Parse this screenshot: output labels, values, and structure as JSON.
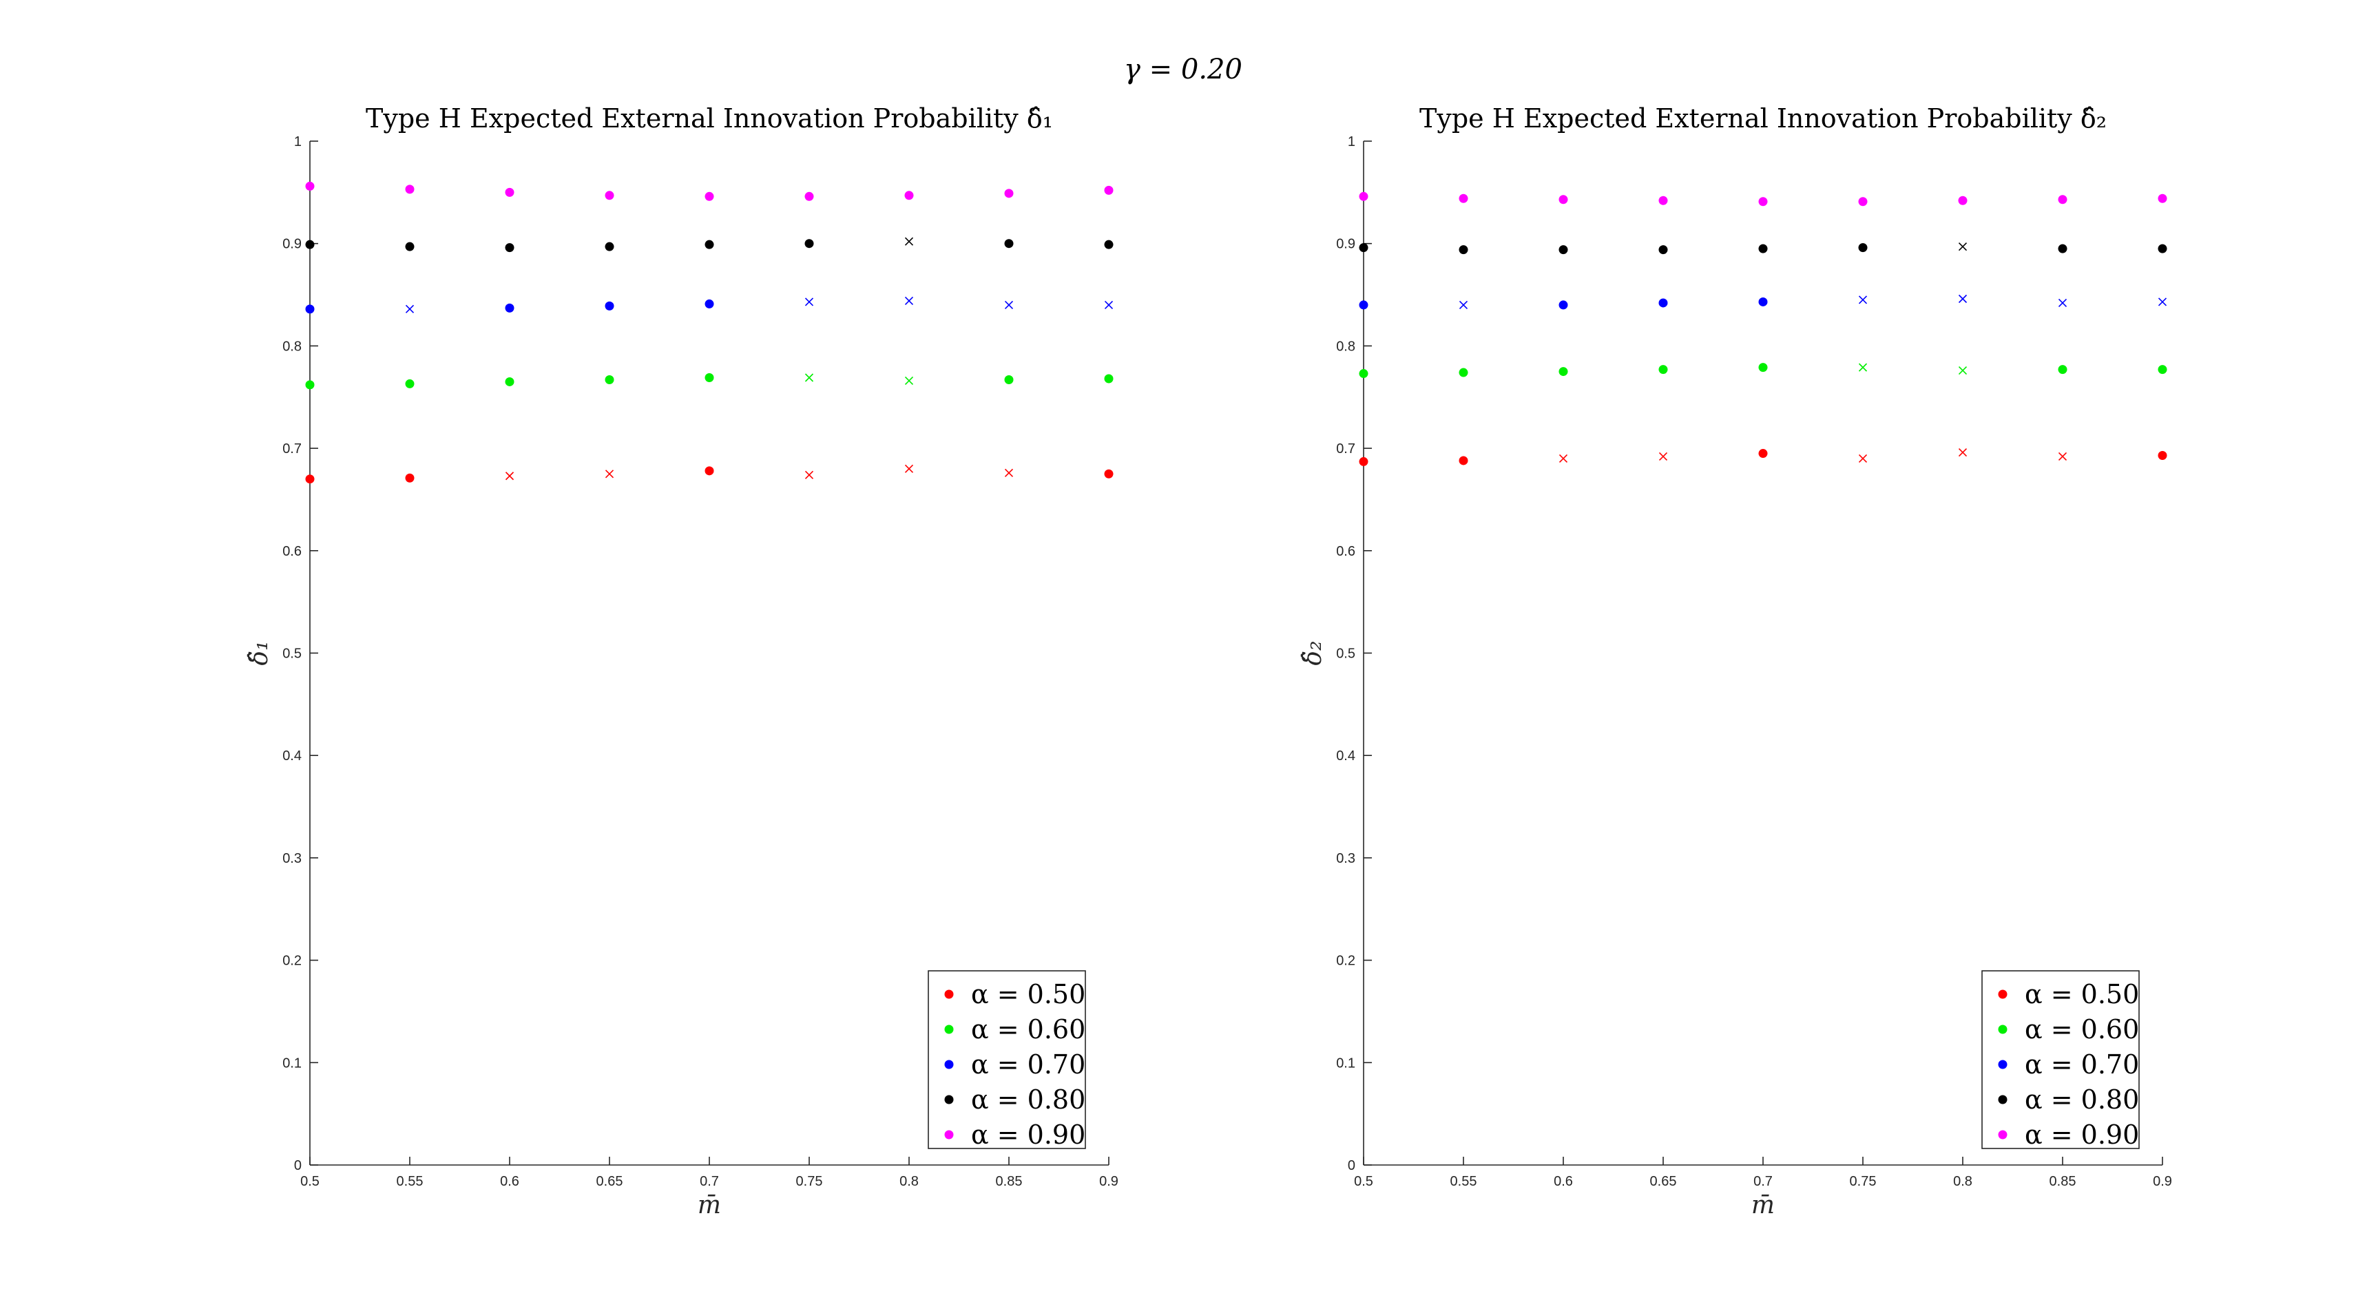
{
  "figure": {
    "suptitle": "γ = 0.20"
  },
  "chart_data": [
    {
      "type": "scatter",
      "title": "Type H Expected External Innovation Probability δ̂₁",
      "xlabel": "m̄",
      "ylabel": "δ̂₁",
      "xlim": [
        0.5,
        0.9
      ],
      "ylim": [
        0,
        1
      ],
      "xticks": [
        "0.5",
        "0.55",
        "0.6",
        "0.65",
        "0.7",
        "0.75",
        "0.8",
        "0.85",
        "0.9"
      ],
      "yticks": [
        "0",
        "0.1",
        "0.2",
        "0.3",
        "0.4",
        "0.5",
        "0.6",
        "0.7",
        "0.8",
        "0.9",
        "1"
      ],
      "x": [
        0.5,
        0.55,
        0.6,
        0.65,
        0.7,
        0.75,
        0.8,
        0.85,
        0.9
      ],
      "legend_position": "bottom-right",
      "marker_note": "dot = filled marker, x = cross marker",
      "series": [
        {
          "name": "α = 0.50",
          "color": "#ff0000",
          "values": [
            0.67,
            0.671,
            0.673,
            0.675,
            0.678,
            0.674,
            0.68,
            0.676,
            0.675
          ],
          "markers": [
            "dot",
            "dot",
            "x",
            "x",
            "dot",
            "x",
            "x",
            "x",
            "dot"
          ]
        },
        {
          "name": "α = 0.60",
          "color": "#00ee00",
          "values": [
            0.762,
            0.763,
            0.765,
            0.767,
            0.769,
            0.769,
            0.766,
            0.767,
            0.768
          ],
          "markers": [
            "dot",
            "dot",
            "dot",
            "dot",
            "dot",
            "x",
            "x",
            "dot",
            "dot"
          ]
        },
        {
          "name": "α = 0.70",
          "color": "#0000ff",
          "values": [
            0.836,
            0.836,
            0.837,
            0.839,
            0.841,
            0.843,
            0.844,
            0.84,
            0.84
          ],
          "markers": [
            "dot",
            "x",
            "dot",
            "dot",
            "dot",
            "x",
            "x",
            "x",
            "x"
          ]
        },
        {
          "name": "α = 0.80",
          "color": "#000000",
          "values": [
            0.899,
            0.897,
            0.896,
            0.897,
            0.899,
            0.9,
            0.902,
            0.9,
            0.899
          ],
          "markers": [
            "dot",
            "dot",
            "dot",
            "dot",
            "dot",
            "dot",
            "x",
            "dot",
            "dot"
          ]
        },
        {
          "name": "α = 0.90",
          "color": "#ff00ff",
          "values": [
            0.956,
            0.953,
            0.95,
            0.947,
            0.946,
            0.946,
            0.947,
            0.949,
            0.952
          ],
          "markers": [
            "dot",
            "dot",
            "dot",
            "dot",
            "dot",
            "dot",
            "dot",
            "dot",
            "dot"
          ]
        }
      ]
    },
    {
      "type": "scatter",
      "title": "Type H Expected External Innovation Probability δ̂₂",
      "xlabel": "m̄",
      "ylabel": "δ̂₂",
      "xlim": [
        0.5,
        0.9
      ],
      "ylim": [
        0,
        1
      ],
      "xticks": [
        "0.5",
        "0.55",
        "0.6",
        "0.65",
        "0.7",
        "0.75",
        "0.8",
        "0.85",
        "0.9"
      ],
      "yticks": [
        "0",
        "0.1",
        "0.2",
        "0.3",
        "0.4",
        "0.5",
        "0.6",
        "0.7",
        "0.8",
        "0.9",
        "1"
      ],
      "x": [
        0.5,
        0.55,
        0.6,
        0.65,
        0.7,
        0.75,
        0.8,
        0.85,
        0.9
      ],
      "legend_position": "bottom-right",
      "marker_note": "dot = filled marker, x = cross marker",
      "series": [
        {
          "name": "α = 0.50",
          "color": "#ff0000",
          "values": [
            0.687,
            0.688,
            0.69,
            0.692,
            0.695,
            0.69,
            0.696,
            0.692,
            0.693
          ],
          "markers": [
            "dot",
            "dot",
            "x",
            "x",
            "dot",
            "x",
            "x",
            "x",
            "dot"
          ]
        },
        {
          "name": "α = 0.60",
          "color": "#00ee00",
          "values": [
            0.773,
            0.774,
            0.775,
            0.777,
            0.779,
            0.779,
            0.776,
            0.777,
            0.777
          ],
          "markers": [
            "dot",
            "dot",
            "dot",
            "dot",
            "dot",
            "x",
            "x",
            "dot",
            "dot"
          ]
        },
        {
          "name": "α = 0.70",
          "color": "#0000ff",
          "values": [
            0.84,
            0.84,
            0.84,
            0.842,
            0.843,
            0.845,
            0.846,
            0.842,
            0.843
          ],
          "markers": [
            "dot",
            "x",
            "dot",
            "dot",
            "dot",
            "x",
            "x",
            "x",
            "x"
          ]
        },
        {
          "name": "α = 0.80",
          "color": "#000000",
          "values": [
            0.896,
            0.894,
            0.894,
            0.894,
            0.895,
            0.896,
            0.897,
            0.895,
            0.895
          ],
          "markers": [
            "dot",
            "dot",
            "dot",
            "dot",
            "dot",
            "dot",
            "x",
            "dot",
            "dot"
          ]
        },
        {
          "name": "α = 0.90",
          "color": "#ff00ff",
          "values": [
            0.946,
            0.944,
            0.943,
            0.942,
            0.941,
            0.941,
            0.942,
            0.943,
            0.944
          ],
          "markers": [
            "dot",
            "dot",
            "dot",
            "dot",
            "dot",
            "dot",
            "dot",
            "dot",
            "dot"
          ]
        }
      ]
    }
  ]
}
